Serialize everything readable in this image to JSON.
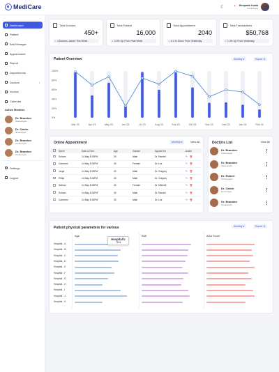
{
  "app": {
    "name": "MediCare"
  },
  "user": {
    "name": "Benjamin Koala",
    "role": "Cardiologist"
  },
  "sidebar": {
    "items": [
      {
        "label": "Dashboard",
        "icon": "dashboard-icon",
        "active": true
      },
      {
        "label": "Patient",
        "icon": "patient-icon"
      },
      {
        "label": "Bed Manager",
        "icon": "bed-icon"
      },
      {
        "label": "Appointment",
        "icon": "calendar-icon"
      },
      {
        "label": "Report",
        "icon": "report-icon"
      },
      {
        "label": "Departments",
        "icon": "building-icon"
      },
      {
        "label": "Doctors",
        "icon": "doctor-icon",
        "has_children": true
      },
      {
        "label": "Invoice",
        "icon": "invoice-icon"
      },
      {
        "label": "Calendar",
        "icon": "calendar-icon"
      }
    ],
    "members_title": "Active Member",
    "members": [
      {
        "name": "Dr. Brandon",
        "role": "Gastrologist"
      },
      {
        "name": "Dr. Calvin",
        "role": "Neurologist"
      },
      {
        "name": "Dr. Brandon",
        "role": "Cardiologist"
      },
      {
        "name": "Dr. Brandon",
        "role": "Cardiologist"
      }
    ],
    "settings": "Settings",
    "logout": "Logout"
  },
  "stats": [
    {
      "label": "Total Doctors",
      "value": "450+",
      "foot": "4 Doctors Joined This Week",
      "trend": "neutral"
    },
    {
      "label": "Total Patient",
      "value": "16,000",
      "foot": "2.5% Up From Past Week",
      "trend": "up"
    },
    {
      "label": "Total Appointment",
      "value": "2040",
      "foot": "5.2 % Down From Yesterday",
      "trend": "down"
    },
    {
      "label": "Total Transactions",
      "value": "$50,768",
      "foot": "1.4% Up From Yesterday",
      "trend": "up"
    }
  ],
  "overview": {
    "title": "Patient Overview",
    "period": "Monthly",
    "export": "Export"
  },
  "chart_data": {
    "type": "bar",
    "title": "Patient Overview",
    "categories": [
      "Mar 23",
      "Apr 23",
      "May 23",
      "Jun 23",
      "Jul 23",
      "Aug 23",
      "Sep 23",
      "Oct 23",
      "Nov 23",
      "Dec 23",
      "Jan 24",
      "Feb 24"
    ],
    "y_ticks": [
      "100%",
      "80%",
      "60%",
      "40%",
      "20%",
      "0%"
    ],
    "ylim": [
      0,
      100
    ],
    "series": [
      {
        "values": [
          97,
          48,
          75,
          25,
          98,
          60,
          97,
          65,
          32,
          33,
          28,
          18
        ],
        "color": "#3f5ae0",
        "mark": "bar"
      },
      {
        "values": [
          99,
          70,
          88,
          25,
          85,
          72,
          100,
          89,
          45,
          60,
          55,
          28
        ],
        "color": "#3f7fd4",
        "mark": "line"
      }
    ],
    "track_color": "#eef0f6"
  },
  "appointments": {
    "title": "Online Appointment",
    "period": "Monthly",
    "view_all": "View All",
    "columns": [
      "Name",
      "Date & Time",
      "Age",
      "Gender",
      "Appoint for",
      "Action"
    ],
    "rows": [
      [
        "Soham",
        "14 May 5:15PM",
        "30",
        "Male",
        "Dr. Randel"
      ],
      [
        "Cameron",
        "14 May 5:15PM",
        "30",
        "Female",
        "Dr. Lez"
      ],
      [
        "Jorge",
        "14 May 5:15PM",
        "30",
        "Male",
        "Dr. Gregory"
      ],
      [
        "Philip",
        "14 May 5:15PM",
        "30",
        "Male",
        "Dr. Gregory"
      ],
      [
        "Nathan",
        "14 May 5:15PM",
        "30",
        "Female",
        "Dr. Mitchell"
      ],
      [
        "Soham",
        "14 May 5:15PM",
        "30",
        "Male",
        "Dr. Randel"
      ],
      [
        "Cameron",
        "14 May 5:15PM",
        "30",
        "Male",
        "Dr. Lez"
      ]
    ]
  },
  "doctors": {
    "title": "Doctors List",
    "view_all": "View All",
    "items": [
      {
        "name": "Dr. Brandon",
        "role": "Gastrologist"
      },
      {
        "name": "Dr. Brandon",
        "role": "Gastrologist"
      },
      {
        "name": "Dr. Robert",
        "role": "Orthopaedic"
      },
      {
        "name": "Dr. Calvin",
        "role": "Neurologist"
      },
      {
        "name": "Dr. Brandon",
        "role": "Cardiologist"
      }
    ]
  },
  "params": {
    "title": "Patient physical parameters for various",
    "period": "Monthly",
    "export": "Export",
    "columns": [
      "Age",
      "BMI",
      "ASA Score"
    ],
    "rows": [
      "Hospital - A",
      "Hospital - B",
      "Hospital - C",
      "Hospital - D",
      "Hospital - E",
      "Hospital - F",
      "Hospital - G",
      "Hospital - H",
      "Hospital - I",
      "Hospital - J",
      "Hospital - K"
    ],
    "colors": [
      "#a9c3e4",
      "#d6b3e6",
      "#f1a9a9"
    ],
    "age": [
      0.8,
      0.75,
      0.7,
      0.72,
      0.6,
      0.65,
      0.55,
      0.45,
      0.75,
      0.85,
      0.45
    ],
    "bmi": [
      0.85,
      0.8,
      0.78,
      0.75,
      0.7,
      0.8,
      0.72,
      0.68,
      0.8,
      0.82,
      0.7
    ],
    "asa": [
      0.8,
      0.75,
      0.78,
      0.72,
      0.8,
      0.7,
      0.75,
      0.65,
      0.78,
      0.8,
      0.65
    ],
    "tooltip": {
      "title": "Hospital b",
      "value": "75%"
    }
  }
}
